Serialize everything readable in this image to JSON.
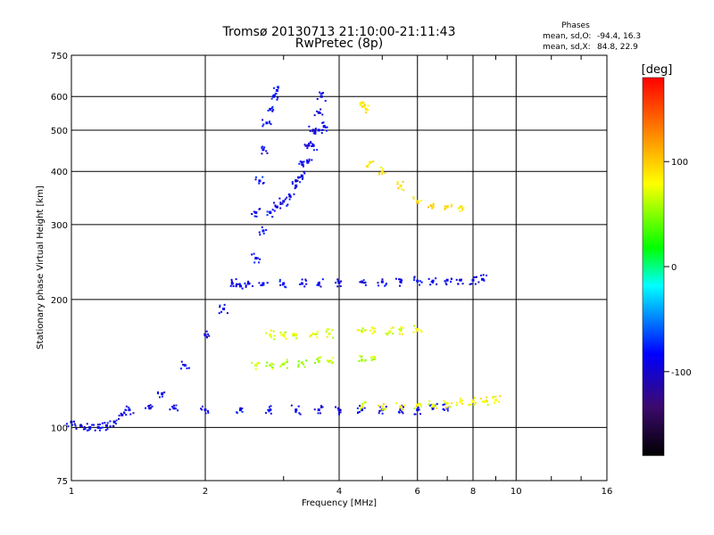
{
  "chart_data": {
    "type": "scatter",
    "title": "Tromsø 20130713 21:10:00-21:11:43",
    "subtitle": "RwPretec (8p)",
    "xlabel": "Frequency [MHz]",
    "ylabel": "Stationary phase Virtual Height [km]",
    "xscale": "log",
    "yscale": "log",
    "xlim": [
      1,
      16
    ],
    "ylim": [
      75,
      750
    ],
    "xticks": [
      1,
      2,
      4,
      6,
      8,
      10,
      16
    ],
    "yticks": [
      75,
      100,
      200,
      300,
      400,
      500,
      600,
      750
    ],
    "grid": true,
    "stats": {
      "heading": "Phases",
      "O_label": "mean, sd,O:",
      "O_values": "-94.4, 16.3",
      "X_label": "mean, sd,X:",
      "X_values": "84.8, 22.9"
    },
    "colorbar": {
      "title": "[deg]",
      "ticks": [
        100,
        0,
        -100
      ],
      "range": [
        -180,
        180
      ],
      "colors": [
        "#000000",
        "#3c0a6e",
        "#0000ff",
        "#00ffff",
        "#00ff00",
        "#ffff00",
        "#ff8000",
        "#ff0000"
      ]
    },
    "series": [
      {
        "trace": "low-trace",
        "phase": -96,
        "x": [
          1.0,
          1.05,
          1.1,
          1.15,
          1.2,
          1.25,
          1.3,
          1.35,
          1.5,
          1.7,
          2.0,
          2.4,
          2.8,
          3.2,
          3.6,
          4.0,
          4.5,
          5.0,
          5.5,
          6.0,
          6.5,
          7.0
        ],
        "y": [
          103,
          101,
          100,
          100,
          101,
          103,
          107,
          110,
          111,
          111,
          110,
          110,
          110,
          110,
          110,
          110,
          110,
          110,
          110,
          110,
          111,
          111
        ]
      },
      {
        "trace": "low-trace-x",
        "phase": 80,
        "x": [
          4.5,
          5.0,
          5.5,
          6.0,
          6.5,
          7.0,
          7.5,
          8.0,
          8.5,
          9.0
        ],
        "y": [
          112,
          112,
          112,
          113,
          113,
          114,
          115,
          115,
          115,
          116
        ]
      },
      {
        "trace": "f-trace",
        "phase": -95,
        "x": [
          1.6,
          1.8,
          2.0,
          2.2,
          2.4,
          2.6,
          2.7,
          2.8,
          2.9,
          3.0,
          3.1,
          3.2,
          3.3,
          3.4,
          3.5,
          3.6,
          3.7
        ],
        "y": [
          120,
          140,
          165,
          190,
          215,
          250,
          290,
          320,
          330,
          340,
          350,
          370,
          390,
          420,
          460,
          500,
          510
        ]
      },
      {
        "trace": "f-cusp",
        "phase": -92,
        "x": [
          2.6,
          2.65,
          2.7,
          2.75,
          2.8,
          2.85,
          2.9
        ],
        "y": [
          320,
          380,
          450,
          520,
          560,
          600,
          620
        ]
      },
      {
        "trace": "f-upper",
        "phase": -100,
        "x": [
          3.2,
          3.3,
          3.4,
          3.5,
          3.6,
          3.65
        ],
        "y": [
          380,
          420,
          460,
          500,
          550,
          600
        ]
      },
      {
        "trace": "mid-218",
        "phase": -96,
        "x": [
          2.3,
          2.5,
          2.7,
          3.0,
          3.3,
          3.6,
          4.0,
          4.5,
          5.0,
          5.5,
          6.0,
          6.5,
          7.0,
          7.5,
          8.0,
          8.4
        ],
        "y": [
          218,
          218,
          218,
          218,
          218,
          218,
          219,
          220,
          220,
          220,
          221,
          221,
          222,
          222,
          222,
          223
        ]
      },
      {
        "trace": "mid-165",
        "phase": 75,
        "x": [
          2.8,
          3.0,
          3.2,
          3.5,
          3.8,
          4.5,
          4.8,
          5.2,
          5.5,
          6.0
        ],
        "y": [
          165,
          165,
          165,
          166,
          166,
          168,
          168,
          168,
          169,
          170
        ]
      },
      {
        "trace": "mid-140",
        "phase": 60,
        "x": [
          2.6,
          2.8,
          3.0,
          3.3,
          3.6,
          3.8,
          4.5,
          4.8
        ],
        "y": [
          140,
          140,
          141,
          142,
          143,
          143,
          144,
          145
        ]
      },
      {
        "trace": "upper-x",
        "phase": 90,
        "x": [
          4.5,
          4.6,
          4.7,
          5.0,
          5.5,
          6.0,
          6.5,
          7.0,
          7.5
        ],
        "y": [
          580,
          560,
          420,
          400,
          370,
          340,
          330,
          330,
          330
        ]
      }
    ]
  }
}
